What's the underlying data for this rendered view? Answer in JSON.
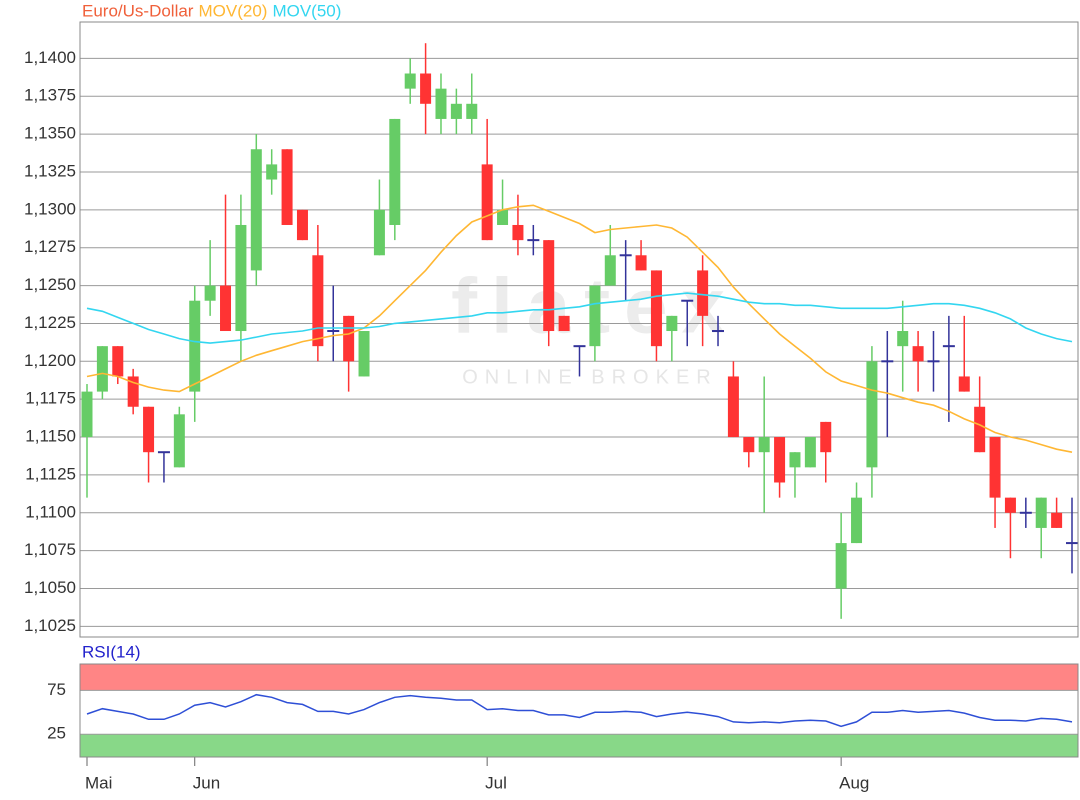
{
  "chart_data": [
    {
      "type": "candlestick",
      "name": "Euro/Us-Dollar",
      "name_color": "#f0603a",
      "color_up": "#66cc66",
      "color_down": "#ff3333",
      "color_flat": "#33339a",
      "categories": [
        "Mai",
        null,
        null,
        null,
        null,
        null,
        null,
        "Jun",
        null,
        null,
        null,
        null,
        null,
        null,
        null,
        null,
        null,
        null,
        null,
        null,
        null,
        null,
        null,
        null,
        null,
        null,
        "Jul",
        null,
        null,
        null,
        null,
        null,
        null,
        null,
        null,
        null,
        null,
        null,
        null,
        null,
        null,
        null,
        null,
        null,
        null,
        null,
        null,
        null,
        null,
        "Aug",
        null,
        null,
        null,
        null,
        null,
        null,
        null,
        null,
        null,
        null,
        null,
        null,
        null,
        null,
        null
      ],
      "open": [
        1.115,
        1.118,
        1.121,
        1.119,
        1.117,
        1.114,
        1.113,
        1.118,
        1.124,
        1.125,
        1.122,
        1.126,
        1.132,
        1.134,
        1.13,
        1.127,
        1.122,
        1.123,
        1.119,
        1.127,
        1.129,
        1.138,
        1.139,
        1.136,
        1.136,
        1.136,
        1.133,
        1.129,
        1.129,
        1.128,
        1.128,
        1.123,
        1.121,
        1.121,
        1.125,
        1.127,
        1.127,
        1.126,
        1.122,
        1.124,
        1.126,
        1.122,
        1.119,
        1.115,
        1.114,
        1.115,
        1.113,
        1.113,
        1.116,
        1.105,
        1.108,
        1.113,
        1.12,
        1.121,
        1.121,
        1.12,
        1.121,
        1.119,
        1.117,
        1.115,
        1.111,
        1.11,
        1.109,
        1.11,
        1.108
      ],
      "high": [
        1.1185,
        1.121,
        1.121,
        1.1195,
        1.117,
        1.114,
        1.117,
        1.125,
        1.128,
        1.131,
        1.131,
        1.135,
        1.134,
        1.134,
        1.13,
        1.129,
        1.125,
        1.123,
        1.122,
        1.132,
        1.136,
        1.14,
        1.141,
        1.139,
        1.138,
        1.139,
        1.136,
        1.132,
        1.131,
        1.129,
        1.128,
        1.123,
        1.121,
        1.125,
        1.129,
        1.128,
        1.128,
        1.126,
        1.123,
        1.124,
        1.127,
        1.123,
        1.12,
        1.115,
        1.119,
        1.115,
        1.114,
        1.115,
        1.116,
        1.11,
        1.112,
        1.121,
        1.122,
        1.124,
        1.122,
        1.122,
        1.123,
        1.123,
        1.119,
        1.115,
        1.111,
        1.111,
        1.111,
        1.111,
        1.111
      ],
      "low": [
        1.111,
        1.1175,
        1.1185,
        1.1165,
        1.112,
        1.112,
        1.113,
        1.116,
        1.123,
        1.122,
        1.12,
        1.125,
        1.131,
        1.129,
        1.128,
        1.12,
        1.12,
        1.118,
        1.119,
        1.127,
        1.128,
        1.137,
        1.135,
        1.135,
        1.135,
        1.135,
        1.128,
        1.129,
        1.127,
        1.127,
        1.121,
        1.122,
        1.119,
        1.12,
        1.125,
        1.124,
        1.126,
        1.12,
        1.12,
        1.121,
        1.121,
        1.121,
        1.115,
        1.113,
        1.11,
        1.111,
        1.111,
        1.113,
        1.112,
        1.103,
        1.108,
        1.111,
        1.115,
        1.118,
        1.118,
        1.118,
        1.116,
        1.118,
        1.114,
        1.109,
        1.107,
        1.109,
        1.107,
        1.109,
        1.106
      ],
      "close": [
        1.118,
        1.121,
        1.119,
        1.117,
        1.114,
        1.114,
        1.1165,
        1.124,
        1.125,
        1.122,
        1.129,
        1.134,
        1.133,
        1.129,
        1.128,
        1.121,
        1.122,
        1.12,
        1.122,
        1.13,
        1.136,
        1.139,
        1.137,
        1.138,
        1.137,
        1.137,
        1.128,
        1.13,
        1.128,
        1.128,
        1.122,
        1.122,
        1.121,
        1.125,
        1.127,
        1.127,
        1.126,
        1.121,
        1.123,
        1.124,
        1.123,
        1.122,
        1.115,
        1.114,
        1.115,
        1.112,
        1.114,
        1.115,
        1.114,
        1.108,
        1.111,
        1.12,
        1.12,
        1.122,
        1.12,
        1.12,
        1.121,
        1.118,
        1.114,
        1.111,
        1.11,
        1.11,
        1.111,
        1.109,
        1.108
      ],
      "series": [
        {
          "name": "MOV(20)",
          "color": "#ffb733",
          "values": [
            1.119,
            1.1192,
            1.119,
            1.1186,
            1.1183,
            1.1181,
            1.118,
            1.1185,
            1.119,
            1.1195,
            1.12,
            1.1204,
            1.1207,
            1.121,
            1.1213,
            1.1215,
            1.1217,
            1.1218,
            1.1222,
            1.123,
            1.124,
            1.125,
            1.126,
            1.1272,
            1.1283,
            1.1292,
            1.1296,
            1.13,
            1.1302,
            1.1303,
            1.1299,
            1.1295,
            1.1291,
            1.1285,
            1.1287,
            1.1288,
            1.1289,
            1.129,
            1.1288,
            1.1282,
            1.1272,
            1.1262,
            1.1249,
            1.1238,
            1.1228,
            1.1218,
            1.121,
            1.1202,
            1.1193,
            1.1187,
            1.1184,
            1.1181,
            1.1179,
            1.1176,
            1.1173,
            1.1171,
            1.1167,
            1.1162,
            1.1158,
            1.1153,
            1.115,
            1.1148,
            1.1145,
            1.1142,
            1.114
          ]
        },
        {
          "name": "MOV(50)",
          "color": "#33d6f0",
          "values": [
            1.1235,
            1.1233,
            1.1229,
            1.1225,
            1.1221,
            1.1218,
            1.1215,
            1.1213,
            1.1212,
            1.1213,
            1.1214,
            1.1216,
            1.1218,
            1.1219,
            1.122,
            1.1222,
            1.1222,
            1.1222,
            1.1222,
            1.1223,
            1.1225,
            1.1226,
            1.1227,
            1.1228,
            1.1229,
            1.123,
            1.1232,
            1.1232,
            1.1233,
            1.1234,
            1.1234,
            1.1235,
            1.1236,
            1.1238,
            1.1239,
            1.124,
            1.1241,
            1.1243,
            1.1244,
            1.1245,
            1.1244,
            1.1243,
            1.1241,
            1.1239,
            1.1238,
            1.1238,
            1.1237,
            1.1237,
            1.1236,
            1.1235,
            1.1235,
            1.1235,
            1.1235,
            1.1236,
            1.1237,
            1.1238,
            1.1238,
            1.1237,
            1.1235,
            1.1232,
            1.1228,
            1.1222,
            1.1218,
            1.1215,
            1.1213
          ]
        }
      ],
      "ylim": [
        1.1018,
        1.1424
      ],
      "yticks": [
        {
          "value": 1.1025,
          "label": "1,1025"
        },
        {
          "value": 1.105,
          "label": "1,1050"
        },
        {
          "value": 1.1075,
          "label": "1,1075"
        },
        {
          "value": 1.11,
          "label": "1,1100"
        },
        {
          "value": 1.1125,
          "label": "1,1125"
        },
        {
          "value": 1.115,
          "label": "1,1150"
        },
        {
          "value": 1.1175,
          "label": "1,1175"
        },
        {
          "value": 1.12,
          "label": "1,1200"
        },
        {
          "value": 1.1225,
          "label": "1,1225"
        },
        {
          "value": 1.125,
          "label": "1,1250"
        },
        {
          "value": 1.1275,
          "label": "1,1275"
        },
        {
          "value": 1.13,
          "label": "1,1300"
        },
        {
          "value": 1.1325,
          "label": "1,1325"
        },
        {
          "value": 1.135,
          "label": "1,1350"
        },
        {
          "value": 1.1375,
          "label": "1,1375"
        },
        {
          "value": 1.14,
          "label": "1,1400"
        }
      ],
      "grid": true
    },
    {
      "type": "line",
      "title": "RSI(14)",
      "title_color": "#2222cc",
      "series": [
        {
          "color": "#2e4fd6",
          "values": [
            48,
            54,
            51,
            48,
            42,
            42,
            48,
            58,
            61,
            56,
            62,
            70,
            67,
            61,
            59,
            51,
            51,
            48,
            53,
            61,
            67,
            69,
            67,
            66,
            64,
            64,
            53,
            54,
            52,
            52,
            47,
            47,
            44,
            50,
            50,
            51,
            50,
            45,
            48,
            50,
            48,
            45,
            39,
            38,
            39,
            38,
            40,
            41,
            40,
            34,
            39,
            50,
            50,
            52,
            50,
            51,
            52,
            49,
            44,
            41,
            41,
            40,
            43,
            42,
            39
          ]
        }
      ],
      "ylim": [
        -1,
        105
      ],
      "yticks": [
        25,
        75
      ],
      "bands": [
        {
          "from": 75,
          "to": 105,
          "color": "#ff8585"
        },
        {
          "from": -1,
          "to": 25,
          "color": "#88d888"
        }
      ],
      "grid": true
    }
  ],
  "watermark": {
    "logo": "flatex",
    "tagline": "ONLINE BROKER"
  }
}
